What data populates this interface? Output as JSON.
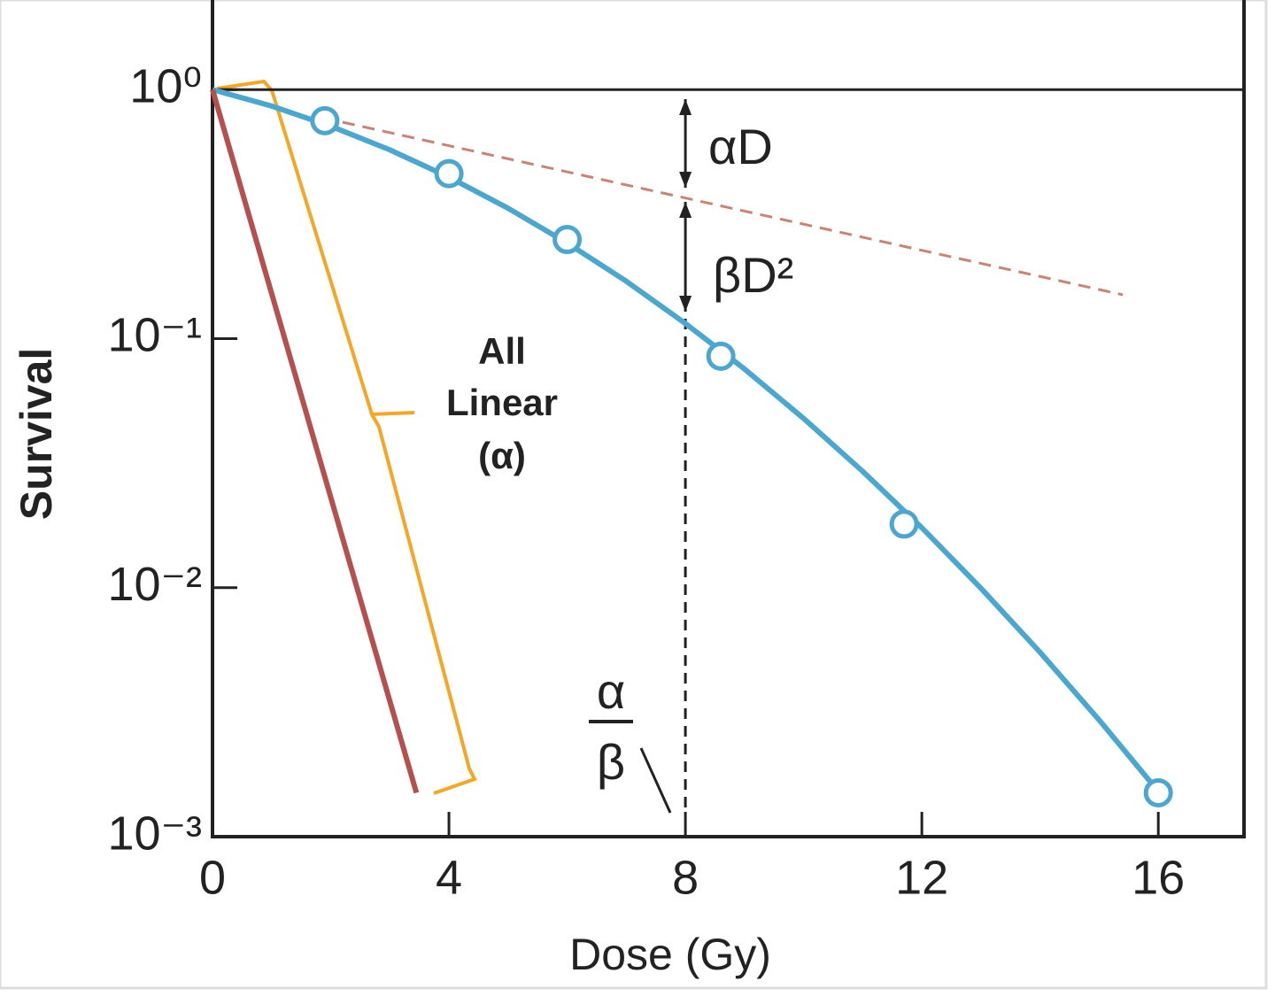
{
  "chart_data": {
    "type": "line",
    "xlabel": "Dose (Gy)",
    "ylabel": "Survival",
    "log_y": true,
    "xlim": [
      0,
      17.45
    ],
    "ylim": [
      0.001,
      2.29
    ],
    "xticks": [
      0,
      4,
      8,
      12,
      16
    ],
    "yticks": [
      {
        "value": 1,
        "label": "10⁰"
      },
      {
        "value": 0.1,
        "label": "10⁻¹"
      },
      {
        "value": 0.01,
        "label": "10⁻²"
      },
      {
        "value": 0.001,
        "label": "10⁻³"
      }
    ],
    "reference_line_y": 1,
    "series": [
      {
        "color": "#4aa8d0",
        "style": "solid",
        "marker": false,
        "x": [
          0,
          1,
          2,
          3,
          4,
          5,
          6,
          7,
          8,
          9,
          10,
          11,
          12,
          13,
          14,
          15,
          16
        ],
        "values": [
          1,
          0.859,
          0.713,
          0.573,
          0.445,
          0.334,
          0.242,
          0.17,
          0.115,
          0.0755,
          0.0478,
          0.0293,
          0.0174,
          0.00994,
          0.0055,
          0.00294,
          0.00152
        ]
      },
      {
        "color": "#4aa8d0",
        "style": "none",
        "marker": true,
        "x": [
          1.9,
          4,
          6,
          8.6,
          11.7,
          16
        ],
        "values": [
          0.75,
          0.46,
          0.25,
          0.085,
          0.018,
          0.0015
        ]
      },
      {
        "color": "#c98474",
        "style": "dashed",
        "marker": false,
        "x": [
          2.2,
          15.4
        ],
        "values": [
          0.74,
          0.15
        ]
      },
      {
        "color": "#b5504f",
        "style": "solid",
        "marker": false,
        "x": [
          0,
          3.45
        ],
        "values": [
          1,
          0.0015
        ]
      }
    ],
    "annotations": {
      "alpha_d": "αD",
      "beta_d2": "βD²",
      "linear_label": [
        "All",
        "Linear",
        "(α)"
      ],
      "ratio": {
        "numerator": "α",
        "denominator": "β",
        "x": 8
      }
    }
  }
}
